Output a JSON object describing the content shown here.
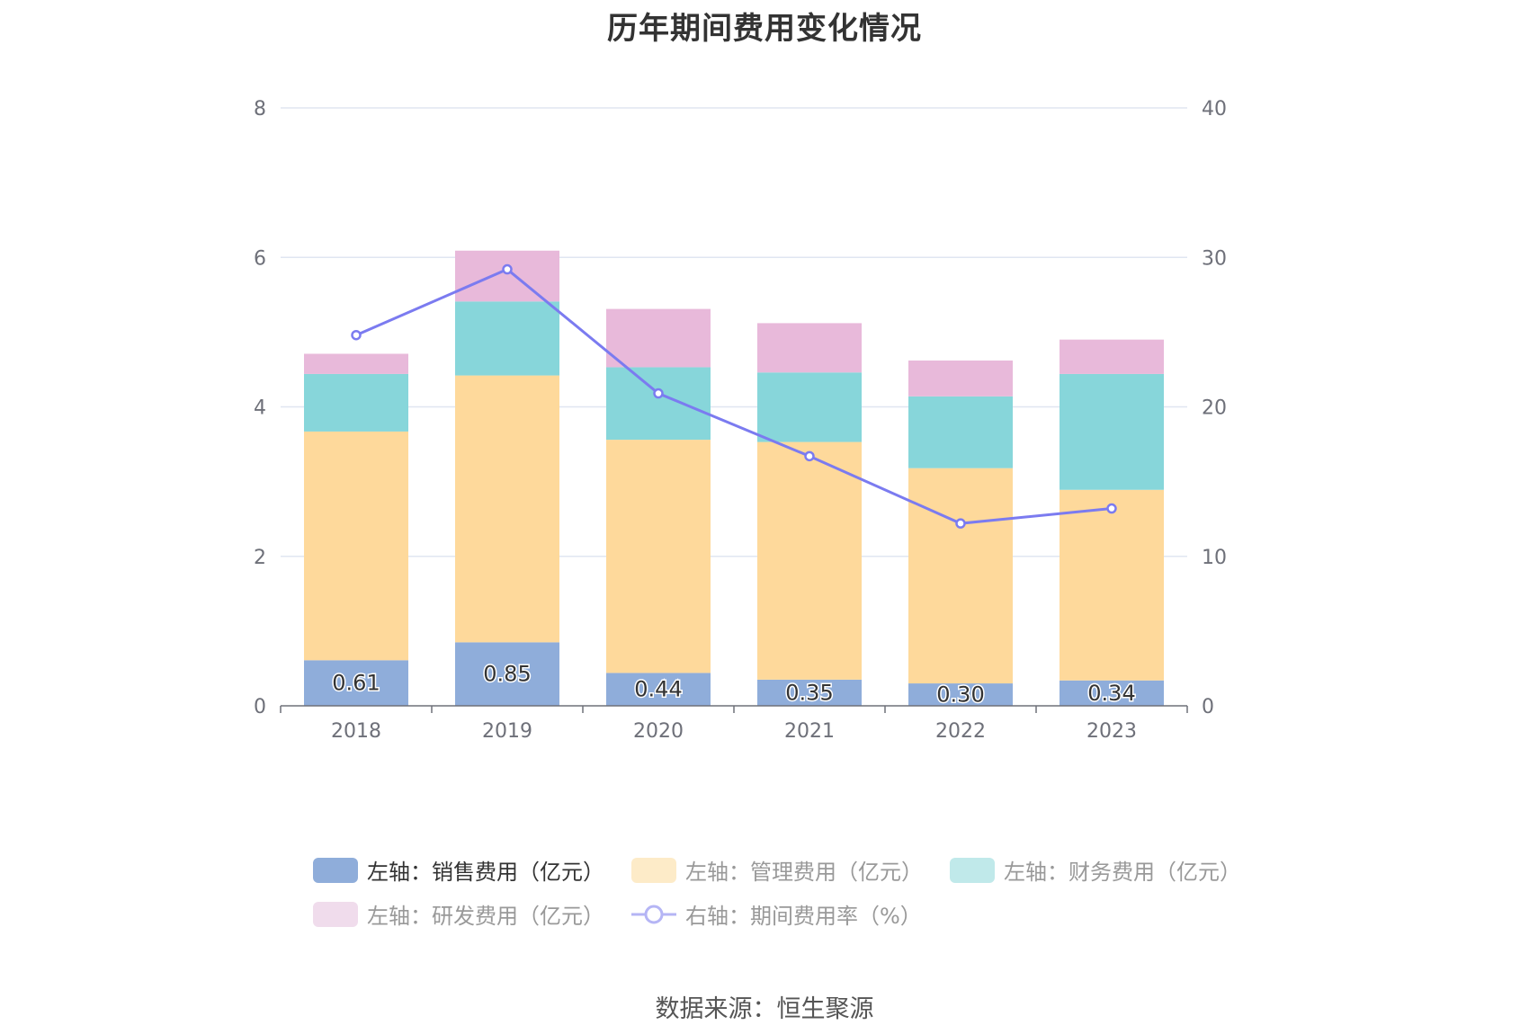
{
  "chart_data": {
    "type": "bar",
    "title": "历年期间费用变化情况",
    "categories": [
      "2018",
      "2019",
      "2020",
      "2021",
      "2022",
      "2023"
    ],
    "y_left": {
      "ticks": [
        "0",
        "2",
        "4",
        "6",
        "8"
      ],
      "ylim": [
        0,
        8
      ]
    },
    "y_right": {
      "ticks": [
        "0",
        "10",
        "20",
        "30",
        "40"
      ],
      "ylim": [
        0,
        40
      ]
    },
    "grid": true,
    "legend_position": "bottom",
    "series": [
      {
        "name": "左轴：销售费用（亿元）",
        "type": "bar",
        "axis": "left",
        "stack": true,
        "color": "#8fadda",
        "values": [
          0.61,
          0.85,
          0.44,
          0.35,
          0.3,
          0.34
        ],
        "labels": [
          "0.61",
          "0.85",
          "0.44",
          "0.35",
          "0.30",
          "0.34"
        ]
      },
      {
        "name": "左轴：管理费用（亿元）",
        "type": "bar",
        "axis": "left",
        "stack": true,
        "color": "#fed99b",
        "values": [
          3.06,
          3.57,
          3.12,
          3.18,
          2.88,
          2.55
        ]
      },
      {
        "name": "左轴：财务费用（亿元）",
        "type": "bar",
        "axis": "left",
        "stack": true,
        "color": "#87d6da",
        "values": [
          0.77,
          0.99,
          0.97,
          0.93,
          0.96,
          1.55
        ]
      },
      {
        "name": "左轴：研发费用（亿元）",
        "type": "bar",
        "axis": "left",
        "stack": true,
        "color": "#e8b9da",
        "values": [
          0.27,
          0.68,
          0.78,
          0.66,
          0.48,
          0.46
        ]
      },
      {
        "name": "右轴：期间费用率（%）",
        "type": "line",
        "axis": "right",
        "color": "#7b7bf0",
        "values": [
          24.8,
          29.2,
          20.9,
          16.7,
          12.2,
          13.2
        ]
      }
    ],
    "source": "数据来源：恒生聚源"
  },
  "legend": {
    "items": [
      {
        "label": "左轴：销售费用（亿元）",
        "swatch": "#8fadda",
        "active": true
      },
      {
        "label": "左轴：管理费用（亿元）",
        "swatch": "#fdebc8",
        "active": false
      },
      {
        "label": "左轴：财务费用（亿元）",
        "swatch": "#c0e9ea",
        "active": false
      },
      {
        "label": "左轴：研发费用（亿元）",
        "swatch": "#f0dcec",
        "active": false
      },
      {
        "label": "右轴：期间费用率（%）",
        "swatch": "#b5b5f5",
        "active": false
      }
    ]
  }
}
